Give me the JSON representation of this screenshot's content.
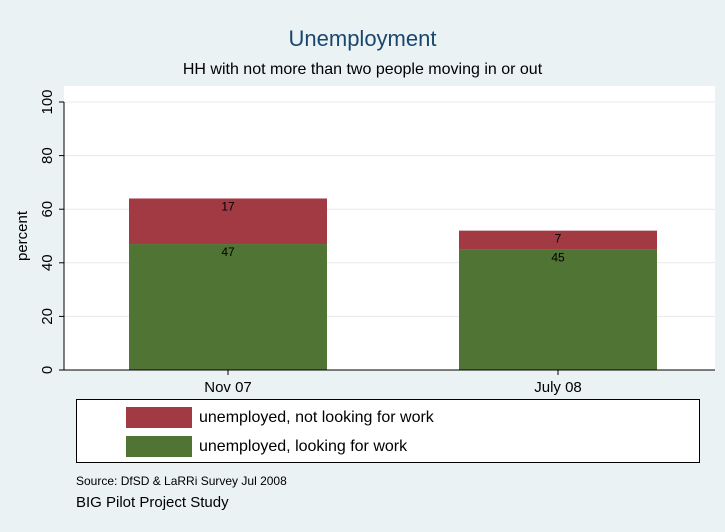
{
  "chart_data": {
    "type": "bar",
    "stacked": true,
    "title": "Unemployment",
    "subtitle": "HH with not more than two people moving in or out",
    "xlabel": "",
    "ylabel": "percent",
    "ylim": [
      0,
      100
    ],
    "yticks": [
      0,
      20,
      40,
      60,
      80,
      100
    ],
    "categories": [
      "Nov 07",
      "July 08"
    ],
    "series": [
      {
        "name": "unemployed, looking for work",
        "values": [
          47,
          45
        ],
        "labels": [
          "47",
          "45"
        ],
        "color": "#4f7433"
      },
      {
        "name": "unemployed, not looking for work",
        "values": [
          17,
          7
        ],
        "labels": [
          "17",
          "7"
        ],
        "color": "#a23a44"
      }
    ],
    "legend": {
      "position": "bottom",
      "order": [
        1,
        0
      ]
    },
    "grid": true,
    "notes": [
      "Source: DfSD & LaRRi Survey Jul 2008",
      "BIG Pilot Project Study"
    ],
    "colors": {
      "background": "#eaf2f3",
      "plot_background": "#ffffff",
      "title": "#1a476f",
      "grid": "#e4ecec"
    }
  }
}
